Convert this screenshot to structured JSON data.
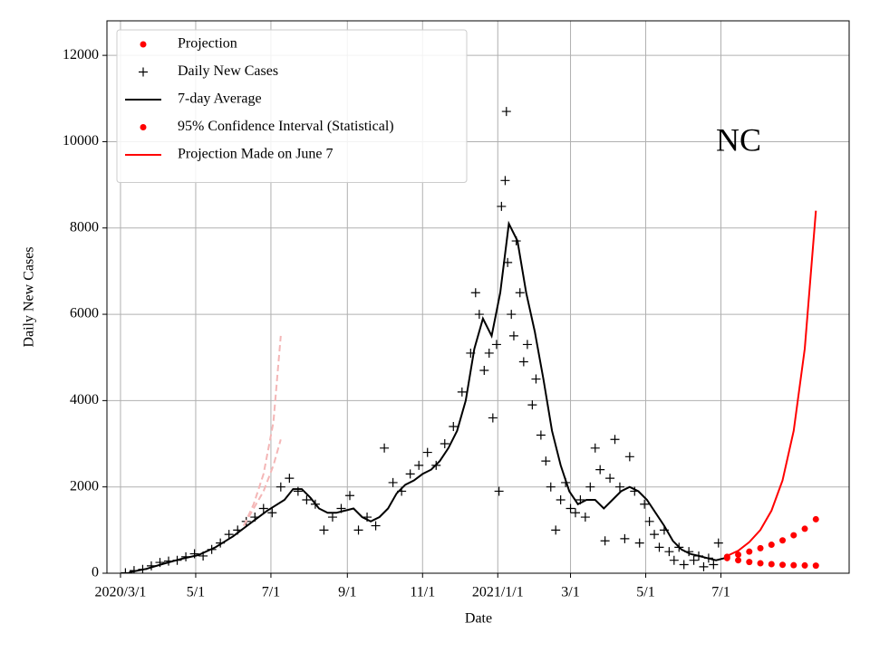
{
  "chart_data": {
    "type": "line",
    "xlabel": "Date",
    "ylabel": "Daily New Cases",
    "annotation": "NC",
    "xlim": [
      "2020-02-19",
      "2021-10-13"
    ],
    "ylim": [
      0,
      12800
    ],
    "yticks": [
      0,
      2000,
      4000,
      6000,
      8000,
      10000,
      12000
    ],
    "xticks": [
      {
        "value": "2020-03-01",
        "label": "2020/3/1"
      },
      {
        "value": "2020-05-01",
        "label": "5/1"
      },
      {
        "value": "2020-07-01",
        "label": "7/1"
      },
      {
        "value": "2020-09-01",
        "label": "9/1"
      },
      {
        "value": "2020-11-01",
        "label": "11/1"
      },
      {
        "value": "2021-01-01",
        "label": "2021/1/1"
      },
      {
        "value": "2021-03-01",
        "label": "3/1"
      },
      {
        "value": "2021-05-01",
        "label": "5/1"
      },
      {
        "value": "2021-07-01",
        "label": "7/1"
      }
    ],
    "grid": true,
    "legend": "upper left",
    "series": [
      {
        "name": "Projection",
        "color": "#ff0000",
        "style": "dots",
        "x": [
          "2021-07-06",
          "2021-07-15",
          "2021-07-24",
          "2021-08-02",
          "2021-08-11",
          "2021-08-20",
          "2021-08-29",
          "2021-09-07",
          "2021-09-16"
        ],
        "values": [
          380,
          430,
          500,
          580,
          660,
          760,
          880,
          1030,
          1250
        ]
      },
      {
        "name": "Daily New Cases",
        "color": "#000000",
        "style": "plus",
        "x": [
          "2020-03-05",
          "2020-03-12",
          "2020-03-19",
          "2020-03-26",
          "2020-04-02",
          "2020-04-09",
          "2020-04-16",
          "2020-04-23",
          "2020-04-30",
          "2020-05-07",
          "2020-05-14",
          "2020-05-21",
          "2020-05-28",
          "2020-06-04",
          "2020-06-11",
          "2020-06-18",
          "2020-06-25",
          "2020-07-02",
          "2020-07-09",
          "2020-07-16",
          "2020-07-23",
          "2020-07-30",
          "2020-08-06",
          "2020-08-13",
          "2020-08-20",
          "2020-08-27",
          "2020-09-03",
          "2020-09-10",
          "2020-09-17",
          "2020-09-24",
          "2020-10-01",
          "2020-10-08",
          "2020-10-15",
          "2020-10-22",
          "2020-10-29",
          "2020-11-05",
          "2020-11-12",
          "2020-11-19",
          "2020-11-26",
          "2020-12-03",
          "2020-12-10",
          "2020-12-14",
          "2020-12-17",
          "2020-12-21",
          "2020-12-25",
          "2020-12-28",
          "2020-12-31",
          "2021-01-02",
          "2021-01-04",
          "2021-01-07",
          "2021-01-08",
          "2021-01-09",
          "2021-01-12",
          "2021-01-14",
          "2021-01-16",
          "2021-01-19",
          "2021-01-22",
          "2021-01-25",
          "2021-01-29",
          "2021-02-01",
          "2021-02-05",
          "2021-02-09",
          "2021-02-13",
          "2021-02-17",
          "2021-02-21",
          "2021-02-25",
          "2021-03-01",
          "2021-03-05",
          "2021-03-09",
          "2021-03-13",
          "2021-03-17",
          "2021-03-21",
          "2021-03-25",
          "2021-03-29",
          "2021-04-02",
          "2021-04-06",
          "2021-04-10",
          "2021-04-14",
          "2021-04-18",
          "2021-04-22",
          "2021-04-26",
          "2021-04-30",
          "2021-05-04",
          "2021-05-08",
          "2021-05-12",
          "2021-05-16",
          "2021-05-20",
          "2021-05-24",
          "2021-05-28",
          "2021-06-01",
          "2021-06-05",
          "2021-06-09",
          "2021-06-13",
          "2021-06-17",
          "2021-06-21",
          "2021-06-25",
          "2021-06-29"
        ],
        "values": [
          10,
          60,
          90,
          170,
          250,
          280,
          300,
          380,
          450,
          400,
          550,
          700,
          900,
          1000,
          1200,
          1300,
          1500,
          1400,
          2000,
          2200,
          1900,
          1700,
          1600,
          1000,
          1300,
          1500,
          1800,
          1000,
          1300,
          1100,
          2900,
          2100,
          1900,
          2300,
          2500,
          2800,
          2500,
          3000,
          3400,
          4200,
          5100,
          6500,
          6000,
          4700,
          5100,
          3600,
          5300,
          1900,
          8500,
          9100,
          10700,
          7200,
          6000,
          5500,
          7700,
          6500,
          4900,
          5300,
          3900,
          4500,
          3200,
          2600,
          2000,
          1000,
          1700,
          2100,
          1500,
          1400,
          1700,
          1300,
          2000,
          2900,
          2400,
          750,
          2200,
          3100,
          2000,
          800,
          2700,
          1900,
          700,
          1600,
          1200,
          900,
          600,
          1000,
          500,
          300,
          600,
          200,
          500,
          300,
          400,
          150,
          350,
          200,
          700
        ]
      },
      {
        "name": "7-day Average",
        "color": "#000000",
        "style": "line",
        "x": [
          "2020-03-08",
          "2020-03-22",
          "2020-04-05",
          "2020-04-19",
          "2020-05-03",
          "2020-05-17",
          "2020-05-31",
          "2020-06-14",
          "2020-06-28",
          "2020-07-12",
          "2020-07-19",
          "2020-07-26",
          "2020-08-02",
          "2020-08-09",
          "2020-08-16",
          "2020-08-23",
          "2020-08-30",
          "2020-09-06",
          "2020-09-13",
          "2020-09-20",
          "2020-09-27",
          "2020-10-04",
          "2020-10-11",
          "2020-10-18",
          "2020-10-25",
          "2020-11-01",
          "2020-11-08",
          "2020-11-15",
          "2020-11-22",
          "2020-11-29",
          "2020-12-06",
          "2020-12-13",
          "2020-12-20",
          "2020-12-27",
          "2021-01-03",
          "2021-01-10",
          "2021-01-17",
          "2021-01-24",
          "2021-01-31",
          "2021-02-07",
          "2021-02-14",
          "2021-02-21",
          "2021-02-28",
          "2021-03-07",
          "2021-03-14",
          "2021-03-21",
          "2021-03-28",
          "2021-04-04",
          "2021-04-11",
          "2021-04-18",
          "2021-04-25",
          "2021-05-02",
          "2021-05-09",
          "2021-05-16",
          "2021-05-23",
          "2021-05-30",
          "2021-06-06",
          "2021-06-13",
          "2021-06-20",
          "2021-06-27",
          "2021-07-04"
        ],
        "values": [
          20,
          100,
          220,
          330,
          420,
          600,
          850,
          1150,
          1450,
          1700,
          1950,
          1950,
          1750,
          1500,
          1400,
          1400,
          1450,
          1500,
          1300,
          1200,
          1300,
          1500,
          1850,
          2050,
          2150,
          2300,
          2400,
          2600,
          2900,
          3300,
          4000,
          5200,
          5900,
          5500,
          6500,
          8100,
          7700,
          6500,
          5600,
          4500,
          3300,
          2500,
          1900,
          1600,
          1700,
          1700,
          1500,
          1700,
          1900,
          2000,
          1900,
          1700,
          1400,
          1100,
          750,
          550,
          450,
          400,
          350,
          300,
          350
        ]
      },
      {
        "name": "95% Confidence Interval (Statistical)",
        "color": "#ff0000",
        "style": "dots",
        "x": [
          "2021-07-06",
          "2021-07-15",
          "2021-07-24",
          "2021-08-02",
          "2021-08-11",
          "2021-08-20",
          "2021-08-29",
          "2021-09-07",
          "2021-09-16"
        ],
        "values": [
          350,
          300,
          260,
          230,
          210,
          195,
          185,
          180,
          175
        ]
      },
      {
        "name": "Projection Made on June 7",
        "color": "#ff0000",
        "style": "line",
        "x": [
          "2021-07-06",
          "2021-07-15",
          "2021-07-24",
          "2021-08-02",
          "2021-08-11",
          "2021-08-20",
          "2021-08-29",
          "2021-09-07",
          "2021-09-16"
        ],
        "values": [
          400,
          520,
          720,
          1000,
          1450,
          2150,
          3300,
          5200,
          8400
        ]
      },
      {
        "color": "#f4b6b6",
        "style": "dashed",
        "x": [
          "2020-06-09",
          "2020-06-17",
          "2020-06-25",
          "2020-07-03",
          "2020-07-09"
        ],
        "values": [
          1100,
          1600,
          2300,
          3500,
          5500
        ]
      },
      {
        "color": "#f4b6b6",
        "style": "dashed",
        "x": [
          "2020-06-09",
          "2020-06-17",
          "2020-06-25",
          "2020-07-03",
          "2020-07-09"
        ],
        "values": [
          1100,
          1500,
          1900,
          2500,
          3100
        ]
      }
    ]
  }
}
